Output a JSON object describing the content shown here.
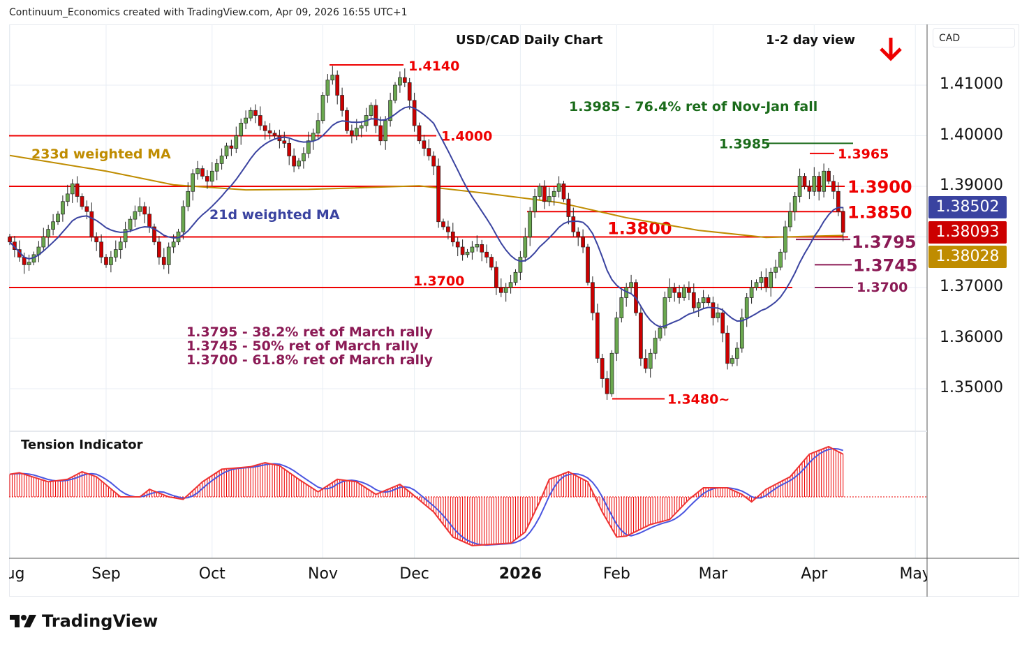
{
  "header": {
    "credit": "Continuum_Economics created with TradingView.com, Apr 09, 2026 16:55 UTC+1",
    "title": "USD/CAD Daily Chart",
    "view": "1-2 day view",
    "currency": "CAD"
  },
  "price_tags": [
    {
      "value": "1.38502",
      "color": "#3a43a0"
    },
    {
      "value": "1.38093",
      "color": "#cc0000"
    },
    {
      "value": "1.38028",
      "color": "#bf8c00"
    }
  ],
  "indicator": {
    "title": "Tension Indicator"
  },
  "logo": {
    "text": "TradingView"
  },
  "chart_data": {
    "type": "candlestick",
    "title": "USD/CAD Daily Chart",
    "y_ticks": [
      "1.41000",
      "1.40000",
      "1.39000",
      "1.37000",
      "1.36000",
      "1.35000"
    ],
    "y_tick_values": [
      1.41,
      1.4,
      1.39,
      1.37,
      1.36,
      1.35
    ],
    "ylim": [
      1.342,
      1.418
    ],
    "x_labels": [
      {
        "label": "Aug",
        "day": 0
      },
      {
        "label": "Sep",
        "day": 20
      },
      {
        "label": "Oct",
        "day": 42
      },
      {
        "label": "Nov",
        "day": 65
      },
      {
        "label": "Dec",
        "day": 84
      },
      {
        "label": "2026",
        "day": 106
      },
      {
        "label": "Feb",
        "day": 126
      },
      {
        "label": "Mar",
        "day": 146
      },
      {
        "label": "Apr",
        "day": 167
      },
      {
        "label": "May",
        "day": 188
      }
    ],
    "closes": [
      1.379,
      1.3775,
      1.376,
      1.3745,
      1.375,
      1.3765,
      1.378,
      1.38,
      1.3815,
      1.383,
      1.3845,
      1.387,
      1.3885,
      1.3905,
      1.388,
      1.386,
      1.385,
      1.38,
      1.379,
      1.376,
      1.3745,
      1.376,
      1.3775,
      1.379,
      1.3815,
      1.3835,
      1.385,
      1.386,
      1.3845,
      1.382,
      1.379,
      1.376,
      1.3745,
      1.378,
      1.379,
      1.381,
      1.386,
      1.389,
      1.3925,
      1.3935,
      1.392,
      1.391,
      1.393,
      1.3945,
      1.396,
      1.398,
      1.3975,
      1.4,
      1.4025,
      1.4035,
      1.405,
      1.404,
      1.402,
      1.401,
      1.4005,
      1.4,
      1.399,
      1.3985,
      1.396,
      1.394,
      1.395,
      1.3965,
      1.399,
      1.4005,
      1.403,
      1.408,
      1.411,
      1.412,
      1.408,
      1.405,
      1.401,
      1.4,
      1.4015,
      1.402,
      1.404,
      1.406,
      1.402,
      1.399,
      1.403,
      1.407,
      1.41,
      1.4115,
      1.4105,
      1.407,
      1.402,
      1.399,
      1.3975,
      1.396,
      1.394,
      1.383,
      1.382,
      1.381,
      1.379,
      1.378,
      1.3765,
      1.377,
      1.378,
      1.3785,
      1.377,
      1.376,
      1.374,
      1.37,
      1.369,
      1.37,
      1.371,
      1.373,
      1.376,
      1.38,
      1.385,
      1.388,
      1.39,
      1.387,
      1.388,
      1.389,
      1.3905,
      1.3875,
      1.384,
      1.381,
      1.38,
      1.378,
      1.371,
      1.365,
      1.356,
      1.352,
      1.349,
      1.357,
      1.364,
      1.368,
      1.37,
      1.371,
      1.365,
      1.356,
      1.354,
      1.357,
      1.36,
      1.362,
      1.368,
      1.37,
      1.369,
      1.368,
      1.37,
      1.369,
      1.366,
      1.367,
      1.368,
      1.367,
      1.364,
      1.365,
      1.361,
      1.355,
      1.356,
      1.358,
      1.364,
      1.368,
      1.37,
      1.371,
      1.372,
      1.37,
      1.373,
      1.374,
      1.377,
      1.382,
      1.385,
      1.388,
      1.392,
      1.39,
      1.389,
      1.392,
      1.389,
      1.393,
      1.391,
      1.389,
      1.385,
      1.3809
    ],
    "ma233": {
      "label": "233d weighted MA",
      "color": "#bf8c00",
      "points": [
        [
          0,
          1.3961
        ],
        [
          20,
          1.393
        ],
        [
          34,
          1.3903
        ],
        [
          49,
          1.3893
        ],
        [
          62,
          1.3894
        ],
        [
          85,
          1.3901
        ],
        [
          99,
          1.3886
        ],
        [
          114,
          1.3868
        ],
        [
          128,
          1.3838
        ],
        [
          143,
          1.3813
        ],
        [
          157,
          1.3799
        ],
        [
          173,
          1.3803
        ]
      ]
    },
    "ma21": {
      "label": "21d weighted MA",
      "color": "#3a43a0"
    },
    "tension": {
      "points": [
        [
          0,
          0.45
        ],
        [
          2,
          0.48
        ],
        [
          8,
          0.3
        ],
        [
          12,
          0.35
        ],
        [
          15,
          0.5
        ],
        [
          18,
          0.4
        ],
        [
          23,
          0.0
        ],
        [
          27,
          0.0
        ],
        [
          29,
          0.15
        ],
        [
          33,
          0.0
        ],
        [
          36,
          -0.05
        ],
        [
          40,
          0.3
        ],
        [
          44,
          0.55
        ],
        [
          50,
          0.6
        ],
        [
          53,
          0.68
        ],
        [
          56,
          0.62
        ],
        [
          60,
          0.35
        ],
        [
          64,
          0.1
        ],
        [
          68,
          0.35
        ],
        [
          72,
          0.3
        ],
        [
          76,
          0.05
        ],
        [
          81,
          0.25
        ],
        [
          83,
          0.1
        ],
        [
          88,
          -0.3
        ],
        [
          92,
          -0.8
        ],
        [
          96,
          -0.97
        ],
        [
          99,
          -0.95
        ],
        [
          104,
          -0.92
        ],
        [
          107,
          -0.7
        ],
        [
          110,
          -0.1
        ],
        [
          112,
          0.35
        ],
        [
          116,
          0.5
        ],
        [
          120,
          0.3
        ],
        [
          123,
          -0.3
        ],
        [
          126,
          -0.8
        ],
        [
          128,
          -0.78
        ],
        [
          133,
          -0.55
        ],
        [
          137,
          -0.45
        ],
        [
          141,
          -0.05
        ],
        [
          144,
          0.18
        ],
        [
          149,
          0.18
        ],
        [
          152,
          0.05
        ],
        [
          154,
          -0.1
        ],
        [
          157,
          0.15
        ],
        [
          162,
          0.4
        ],
        [
          166,
          0.85
        ],
        [
          170,
          1.0
        ],
        [
          173,
          0.85
        ]
      ]
    },
    "levels": [
      {
        "price": 1.414,
        "label": "1.4140",
        "color": "#ee0000"
      },
      {
        "price": 1.4,
        "label": "1.4000",
        "color": "#ee0000"
      },
      {
        "price": 1.3985,
        "label": "1.3985",
        "color": "#1a6b1a"
      },
      {
        "price": 1.3965,
        "label": "1.3965",
        "color": "#ee0000"
      },
      {
        "price": 1.39,
        "label": "1.3900",
        "color": "#ee0000"
      },
      {
        "price": 1.385,
        "label": "1.3850",
        "color": "#ee0000"
      },
      {
        "price": 1.38,
        "label": "1.3800",
        "color": "#ee0000"
      },
      {
        "price": 1.3795,
        "label": "1.3795",
        "color": "#8b1a55"
      },
      {
        "price": 1.3745,
        "label": "1.3745",
        "color": "#8b1a55"
      },
      {
        "price": 1.37,
        "label": "1.3700",
        "color": "#ee0000"
      },
      {
        "price": 1.37,
        "label": "1.3700",
        "color": "#8b1a55"
      },
      {
        "price": 1.348,
        "label": "1.3480~",
        "color": "#ee0000"
      }
    ],
    "notes": [
      {
        "text": "1.3985 - 76.4% ret of Nov-Jan fall",
        "color": "#1a6b1a"
      },
      {
        "text": "1.3795 - 38.2% ret of March rally",
        "color": "#8b1a55"
      },
      {
        "text": "1.3745 - 50% ret of March rally",
        "color": "#8b1a55"
      },
      {
        "text": "1.3700 - 61.8% ret of March rally",
        "color": "#8b1a55"
      }
    ]
  }
}
